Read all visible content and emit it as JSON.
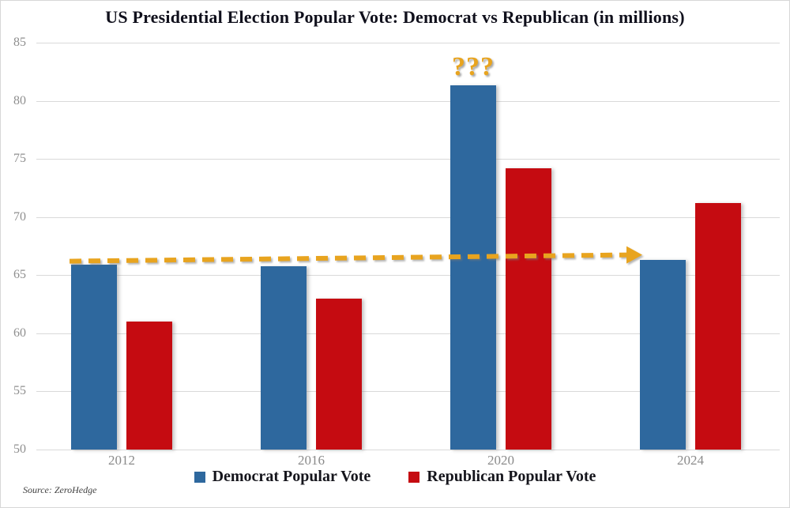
{
  "title": "US Presidential Election Popular Vote: Democrat vs Republican (in millions)",
  "source_note": "Source: ZeroHedge",
  "annotation": {
    "question_marks": "???",
    "arrow_level": 66,
    "arrow_color": "#e8a41f",
    "arrow_from_category": "2012",
    "arrow_to_category": "2024"
  },
  "colors": {
    "democrat": "#2e689e",
    "republican": "#c50b11",
    "gold": "#e8a41f",
    "grid": "#d9d9d9"
  },
  "legend": [
    {
      "label": "Democrat Popular Vote",
      "color": "#2e689e"
    },
    {
      "label": "Republican Popular Vote",
      "color": "#c50b11"
    }
  ],
  "chart_data": {
    "type": "bar",
    "title": "US Presidential Election Popular Vote: Democrat vs Republican (in millions)",
    "categories": [
      "2012",
      "2016",
      "2020",
      "2024"
    ],
    "series": [
      {
        "name": "Democrat Popular Vote",
        "color": "#2e689e",
        "values": [
          65.9,
          65.8,
          81.3,
          66.3
        ]
      },
      {
        "name": "Republican Popular Vote",
        "color": "#c50b11",
        "values": [
          61.0,
          63.0,
          74.2,
          71.2
        ]
      }
    ],
    "ylim": [
      50,
      85
    ],
    "yticks": [
      50,
      55,
      60,
      65,
      70,
      75,
      80,
      85
    ],
    "grid": true,
    "legend_position": "bottom",
    "annotations": [
      {
        "text": "???",
        "category": "2020",
        "series": "Democrat Popular Vote",
        "position": "above-bar"
      },
      {
        "type": "dashed-arrow",
        "from_category": "2012",
        "to_category": "2024",
        "y_value": 66,
        "note": "flat Democrat vote line excluding 2020 spike"
      }
    ]
  }
}
